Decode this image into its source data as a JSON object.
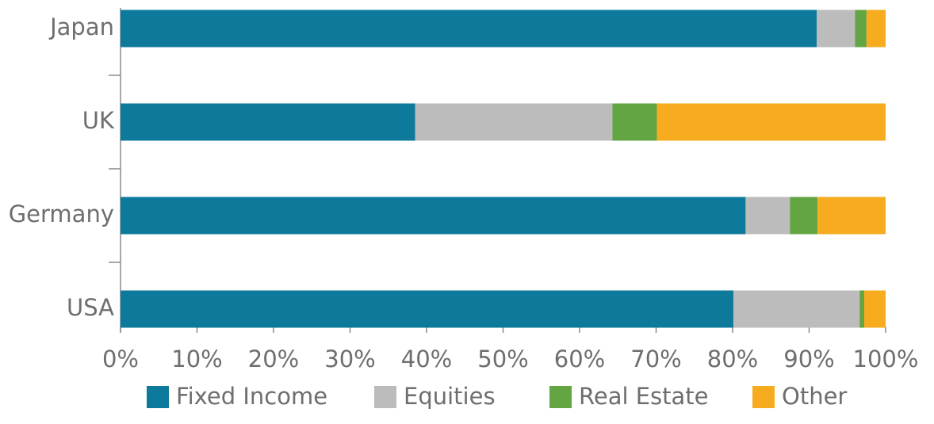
{
  "chart_data": {
    "type": "stacked-bar-horizontal",
    "categories": [
      "Japan",
      "UK",
      "Germany",
      "USA"
    ],
    "series": [
      {
        "name": "Fixed Income",
        "color": "#0e7a9b",
        "values": [
          91,
          38.5,
          81.7,
          80.1
        ]
      },
      {
        "name": "Equities",
        "color": "#bbbcbb",
        "values": [
          5,
          25.8,
          5.8,
          16.5
        ]
      },
      {
        "name": "Real Estate",
        "color": "#62a542",
        "values": [
          1.5,
          5.8,
          3.6,
          0.6
        ]
      },
      {
        "name": "Other",
        "color": "#f7ac20",
        "values": [
          2.5,
          29.9,
          8.9,
          2.8
        ]
      }
    ],
    "xlim": [
      0,
      100
    ],
    "xticks": [
      {
        "value": 0,
        "label": "0%"
      },
      {
        "value": 10,
        "label": "10%"
      },
      {
        "value": 20,
        "label": "20%"
      },
      {
        "value": 30,
        "label": "30%"
      },
      {
        "value": 40,
        "label": "40%"
      },
      {
        "value": 50,
        "label": "50%"
      },
      {
        "value": 60,
        "label": "60%"
      },
      {
        "value": 70,
        "label": "70%"
      },
      {
        "value": 80,
        "label": "80%"
      },
      {
        "value": 90,
        "label": "90%"
      },
      {
        "value": 100,
        "label": "100%"
      }
    ],
    "legend": "bottom"
  }
}
